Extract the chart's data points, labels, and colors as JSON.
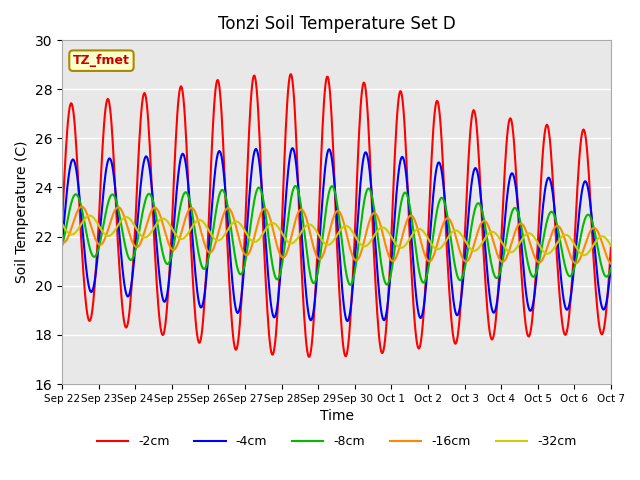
{
  "title": "Tonzi Soil Temperature Set D",
  "xlabel": "Time",
  "ylabel": "Soil Temperature (C)",
  "ylim": [
    16,
    30
  ],
  "yticks": [
    16,
    18,
    20,
    22,
    24,
    26,
    28,
    30
  ],
  "annotation_label": "TZ_fmet",
  "series": [
    {
      "label": "-2cm",
      "color": "#ff0000",
      "lw": 1.5
    },
    {
      "label": "-4cm",
      "color": "#0000ff",
      "lw": 1.5
    },
    {
      "label": "-8cm",
      "color": "#00bb00",
      "lw": 1.5
    },
    {
      "label": "-16cm",
      "color": "#ff8800",
      "lw": 1.5
    },
    {
      "label": "-32cm",
      "color": "#cccc00",
      "lw": 1.5
    }
  ],
  "x_tick_labels": [
    "Sep 22",
    "Sep 23",
    "Sep 24",
    "Sep 25",
    "Sep 26",
    "Sep 27",
    "Sep 28",
    "Sep 29",
    "Sep 30",
    "Oct 1",
    "Oct 2",
    "Oct 3",
    "Oct 4",
    "Oct 5",
    "Oct 6",
    "Oct 7"
  ],
  "bg_color": "#e8e8e8",
  "fig_bg": "#ffffff",
  "grid_color": "#ffffff"
}
